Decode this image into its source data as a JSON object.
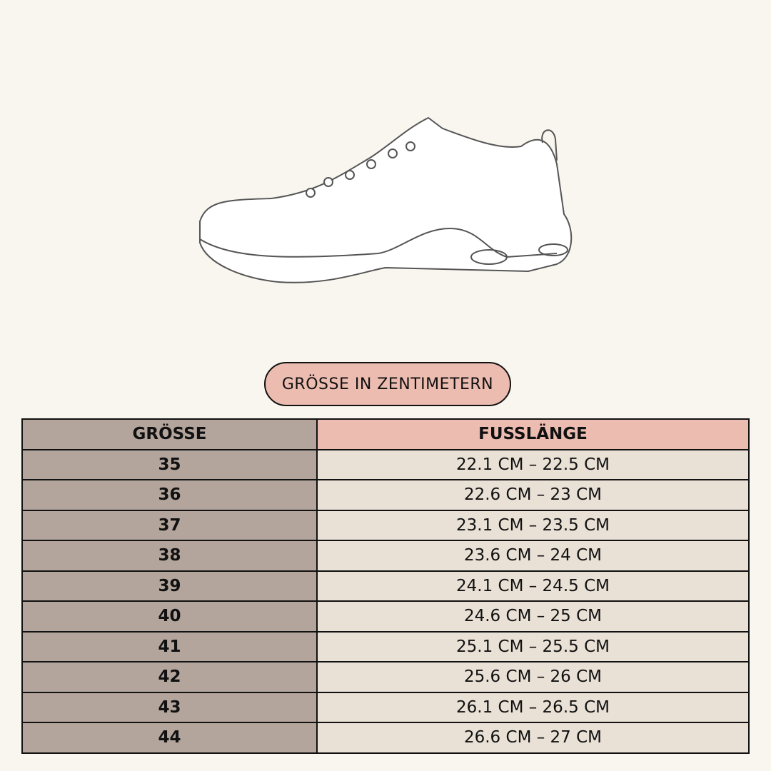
{
  "badge": "GRÖSSE IN ZENTIMETERN",
  "table": {
    "header": [
      "GRÖSSE",
      "FUSSLÄNGE"
    ],
    "rows": [
      [
        "35",
        "22.1 CM – 22.5 CM"
      ],
      [
        "36",
        "22.6 CM – 23 CM"
      ],
      [
        "37",
        "23.1 CM – 23.5 CM"
      ],
      [
        "38",
        "23.6 CM – 24 CM"
      ],
      [
        "39",
        "24.1 CM – 24.5 CM"
      ],
      [
        "40",
        "24.6 CM – 25 CM"
      ],
      [
        "41",
        "25.1 CM – 25.5 CM"
      ],
      [
        "42",
        "25.6 CM – 26 CM"
      ],
      [
        "43",
        "26.1 CM – 26.5 CM"
      ],
      [
        "44",
        "26.6 CM – 27 CM"
      ]
    ]
  }
}
